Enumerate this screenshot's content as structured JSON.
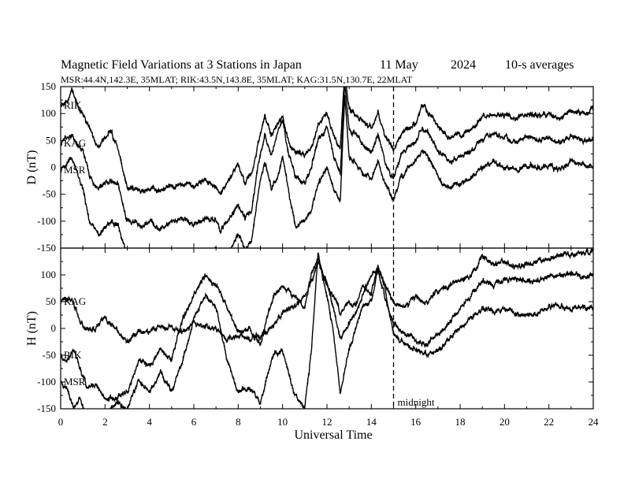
{
  "header": {
    "title": "Magnetic Field Variations at 3 Stations in Japan",
    "date": "11 May",
    "year": "2024",
    "avg": "10-s averages",
    "stations": "MSR:44.4N,142.3E, 35MLAT;  RIK:43.5N,143.8E, 35MLAT;  KAG:31.5N,130.7E, 22MLAT"
  },
  "chart_data": {
    "type": "line",
    "xlabel": "Universal Time",
    "xlim": [
      0,
      24
    ],
    "x_ticks": [
      "0",
      "2",
      "4",
      "6",
      "8",
      "10",
      "12",
      "14",
      "16",
      "18",
      "20",
      "22",
      "24"
    ],
    "marker": {
      "x": 15,
      "label": "midnight"
    },
    "panels": [
      {
        "name": "D",
        "ylabel": "D (nT)",
        "ylim": [
          -150,
          150
        ],
        "y_ticks": [
          "150",
          "100",
          "50",
          "0",
          "-50",
          "-100",
          "-150"
        ],
        "series": [
          {
            "name": "RIK",
            "x": [
              0,
              0.3,
              0.5,
              0.8,
              1,
              1.3,
              1.7,
              2,
              2.3,
              2.6,
              3,
              3.3,
              3.6,
              4,
              4.5,
              5,
              5.5,
              6,
              6.5,
              7,
              7.2,
              7.5,
              7.8,
              8,
              8.3,
              8.6,
              8.9,
              9.2,
              9.5,
              9.8,
              10,
              10.3,
              10.6,
              11,
              11.3,
              11.6,
              12,
              12.3,
              12.6,
              12.8,
              13,
              13.3,
              13.6,
              14,
              14.3,
              14.6,
              15,
              15.3,
              15.6,
              16,
              16.3,
              16.6,
              17,
              17.5,
              18,
              18.5,
              19,
              19.5,
              20,
              20.5,
              21,
              21.5,
              22,
              22.5,
              23,
              23.5,
              24
            ],
            "values": [
              115,
              120,
              145,
              110,
              100,
              70,
              40,
              55,
              65,
              30,
              -35,
              -40,
              -45,
              -40,
              -45,
              -35,
              -30,
              -35,
              -25,
              -35,
              -50,
              -30,
              -10,
              5,
              -30,
              -10,
              45,
              95,
              60,
              80,
              95,
              45,
              30,
              20,
              40,
              80,
              100,
              60,
              35,
              180,
              110,
              95,
              85,
              75,
              100,
              60,
              30,
              60,
              70,
              80,
              115,
              100,
              75,
              55,
              60,
              70,
              95,
              100,
              95,
              90,
              100,
              95,
              100,
              90,
              105,
              100,
              105
            ]
          },
          {
            "name": "KAG",
            "x": [
              0,
              0.3,
              0.5,
              0.8,
              1,
              1.3,
              1.7,
              2,
              2.3,
              2.6,
              3,
              3.3,
              3.6,
              4,
              4.5,
              5,
              5.5,
              6,
              6.5,
              7,
              7.2,
              7.5,
              7.8,
              8,
              8.3,
              8.6,
              8.9,
              9.2,
              9.5,
              9.8,
              10,
              10.3,
              10.6,
              11,
              11.3,
              11.6,
              12,
              12.3,
              12.6,
              12.8,
              13,
              13.3,
              13.6,
              14,
              14.3,
              14.6,
              15,
              15.3,
              15.6,
              16,
              16.3,
              16.6,
              17,
              17.5,
              18,
              18.5,
              19,
              19.5,
              20,
              20.5,
              21,
              21.5,
              22,
              22.5,
              23,
              23.5,
              24
            ],
            "values": [
              45,
              55,
              60,
              35,
              30,
              -15,
              -40,
              -30,
              -25,
              -35,
              -100,
              -105,
              -110,
              -100,
              -115,
              -100,
              -95,
              -105,
              -95,
              -100,
              -120,
              -100,
              -80,
              -70,
              -95,
              -80,
              5,
              60,
              20,
              70,
              85,
              20,
              -20,
              -30,
              0,
              50,
              75,
              20,
              -10,
              160,
              70,
              60,
              45,
              30,
              60,
              10,
              -20,
              20,
              35,
              50,
              75,
              60,
              30,
              10,
              20,
              30,
              55,
              60,
              55,
              45,
              60,
              50,
              55,
              45,
              60,
              50,
              50
            ]
          },
          {
            "name": "MSR",
            "x": [
              0,
              0.3,
              0.5,
              0.8,
              1,
              1.3,
              1.7,
              2,
              2.3,
              2.6,
              3,
              3.3,
              3.6,
              4,
              4.5,
              5,
              5.5,
              6,
              6.5,
              7,
              7.2,
              7.5,
              7.8,
              8,
              8.3,
              8.6,
              8.9,
              9.2,
              9.5,
              9.8,
              10,
              10.3,
              10.6,
              11,
              11.3,
              11.6,
              12,
              12.3,
              12.6,
              12.8,
              13,
              13.3,
              13.6,
              14,
              14.3,
              14.6,
              15,
              15.3,
              15.6,
              16,
              16.3,
              16.6,
              17,
              17.5,
              18,
              18.5,
              19,
              19.5,
              20,
              20.5,
              21,
              21.5,
              22,
              22.5,
              23,
              23.5,
              24
            ],
            "values": [
              -5,
              10,
              20,
              -20,
              -40,
              -100,
              -130,
              -110,
              -100,
              -110,
              -160,
              -160,
              -165,
              -155,
              -170,
              -160,
              -165,
              -170,
              -155,
              -150,
              -175,
              -160,
              -140,
              -120,
              -150,
              -140,
              -50,
              10,
              -40,
              -10,
              20,
              -50,
              -110,
              -100,
              -80,
              -30,
              0,
              -40,
              -60,
              130,
              20,
              10,
              -10,
              -20,
              10,
              -30,
              -60,
              -20,
              -5,
              10,
              30,
              20,
              -20,
              -40,
              -30,
              -20,
              0,
              10,
              0,
              -10,
              5,
              0,
              5,
              -5,
              10,
              5,
              0
            ]
          }
        ]
      },
      {
        "name": "H",
        "ylabel": "H (nT)",
        "ylim": [
          -150,
          150
        ],
        "y_ticks": [
          "150",
          "100",
          "50",
          "0",
          "-50",
          "-100",
          "-150"
        ],
        "series": [
          {
            "name": "KAG",
            "x": [
              0,
              0.3,
              0.6,
              0.9,
              1.2,
              1.6,
              2,
              2.5,
              3,
              3.5,
              4,
              4.5,
              5,
              5.5,
              6,
              6.5,
              7,
              7.5,
              8,
              8.5,
              9,
              9.3,
              9.6,
              10,
              10.5,
              11,
              11.3,
              11.6,
              12,
              12.3,
              12.6,
              13,
              13.3,
              13.6,
              14,
              14.3,
              14.6,
              15,
              15.5,
              16,
              16.5,
              17,
              17.5,
              18,
              18.5,
              19,
              19.5,
              20,
              20.5,
              21,
              21.5,
              22,
              22.5,
              23,
              23.5,
              24
            ],
            "values": [
              50,
              55,
              45,
              10,
              -5,
              0,
              20,
              -5,
              -25,
              -10,
              -5,
              5,
              0,
              -5,
              10,
              5,
              0,
              -20,
              -15,
              -20,
              -15,
              -5,
              5,
              30,
              40,
              60,
              90,
              120,
              80,
              60,
              30,
              50,
              40,
              80,
              65,
              120,
              80,
              50,
              40,
              60,
              50,
              70,
              80,
              90,
              100,
              135,
              120,
              125,
              115,
              120,
              125,
              130,
              135,
              140,
              140,
              145
            ]
          },
          {
            "name": "RIK",
            "x": [
              0,
              0.3,
              0.6,
              0.9,
              1.2,
              1.6,
              2,
              2.5,
              3,
              3.5,
              4,
              4.5,
              5,
              5.5,
              6,
              6.5,
              7,
              7.5,
              8,
              8.5,
              9,
              9.3,
              9.6,
              10,
              10.5,
              11,
              11.3,
              11.6,
              12,
              12.3,
              12.6,
              13,
              13.3,
              13.6,
              14,
              14.3,
              14.6,
              15,
              15.5,
              16,
              16.5,
              17,
              17.5,
              18,
              18.5,
              19,
              19.5,
              20,
              20.5,
              21,
              21.5,
              22,
              22.5,
              23,
              23.5,
              24
            ],
            "values": [
              -50,
              -60,
              -40,
              -80,
              -110,
              -105,
              -130,
              -130,
              -120,
              -60,
              -70,
              -40,
              -60,
              20,
              60,
              100,
              80,
              40,
              -10,
              0,
              -30,
              20,
              60,
              80,
              60,
              40,
              100,
              130,
              80,
              40,
              -20,
              10,
              30,
              60,
              100,
              110,
              60,
              10,
              -10,
              -20,
              -30,
              -10,
              10,
              40,
              60,
              90,
              80,
              90,
              95,
              85,
              90,
              95,
              100,
              100,
              95,
              100
            ]
          },
          {
            "name": "MSR",
            "x": [
              0,
              0.3,
              0.6,
              0.9,
              1.2,
              1.6,
              2,
              2.5,
              3,
              3.5,
              4,
              4.5,
              5,
              5.5,
              6,
              6.5,
              7,
              7.5,
              8,
              8.5,
              9,
              9.3,
              9.6,
              10,
              10.5,
              11,
              11.3,
              11.6,
              12,
              12.3,
              12.6,
              13,
              13.3,
              13.6,
              14,
              14.3,
              14.6,
              15,
              15.5,
              16,
              16.5,
              17,
              17.5,
              18,
              18.5,
              19,
              19.5,
              20,
              20.5,
              21,
              21.5,
              22,
              22.5,
              23,
              23.5,
              24
            ],
            "values": [
              -100,
              -110,
              -150,
              -130,
              -170,
              -180,
              -160,
              -140,
              -150,
              -100,
              -120,
              -80,
              -120,
              -60,
              20,
              60,
              40,
              -60,
              -120,
              -110,
              -140,
              -90,
              -50,
              -40,
              -120,
              -150,
              -40,
              140,
              60,
              -10,
              -120,
              -40,
              0,
              40,
              50,
              110,
              80,
              -10,
              -30,
              -40,
              -50,
              -40,
              -20,
              0,
              20,
              40,
              30,
              35,
              30,
              25,
              30,
              40,
              45,
              35,
              40,
              40
            ]
          }
        ]
      }
    ]
  }
}
